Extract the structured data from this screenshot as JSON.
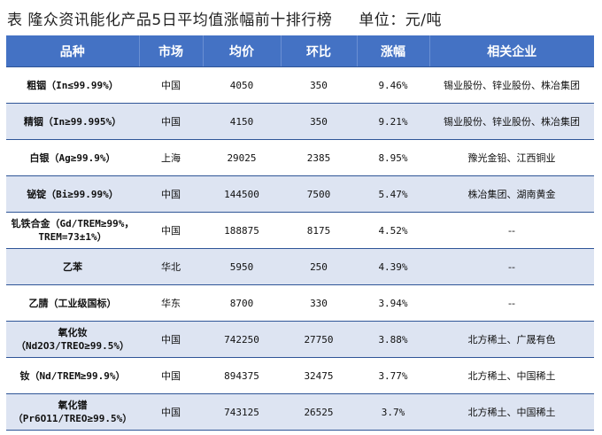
{
  "title": {
    "main": "表  隆众资讯能化产品5日平均值涨幅前十排行榜",
    "unit": "单位：元/吨"
  },
  "headers": [
    "品种",
    "市场",
    "均价",
    "环比",
    "涨幅",
    "相关企业"
  ],
  "rows": [
    {
      "name": "粗铟（In≤99.99%）",
      "market": "中国",
      "avg": "4050",
      "change": "350",
      "pct": "9.46%",
      "companies": "锡业股份、锌业股份、株冶集团"
    },
    {
      "name": "精铟（In≥99.995%）",
      "market": "中国",
      "avg": "4150",
      "change": "350",
      "pct": "9.21%",
      "companies": "锡业股份、锌业股份、株冶集团"
    },
    {
      "name": "白银（Ag≥99.9%）",
      "market": "上海",
      "avg": "29025",
      "change": "2385",
      "pct": "8.95%",
      "companies": "豫光金铅、江西铜业"
    },
    {
      "name": "铋锭（Bi≥99.99%）",
      "market": "中国",
      "avg": "144500",
      "change": "7500",
      "pct": "5.47%",
      "companies": "株冶集团、湖南黄金"
    },
    {
      "name": "钆铁合金（Gd/TREM≥99%，TREM=73±1%）",
      "market": "中国",
      "avg": "188875",
      "change": "8175",
      "pct": "4.52%",
      "companies": "--"
    },
    {
      "name": "乙苯",
      "market": "华北",
      "avg": "5950",
      "change": "250",
      "pct": "4.39%",
      "companies": "--"
    },
    {
      "name": "乙腈（工业级国标）",
      "market": "华东",
      "avg": "8700",
      "change": "330",
      "pct": "3.94%",
      "companies": "--"
    },
    {
      "name": "氧化钕（Nd2O3/TREO≥99.5%）",
      "market": "中国",
      "avg": "742250",
      "change": "27750",
      "pct": "3.88%",
      "companies": "北方稀土、广晟有色"
    },
    {
      "name": "钕（Nd/TREM≥99.9%）",
      "market": "中国",
      "avg": "894375",
      "change": "32475",
      "pct": "3.77%",
      "companies": "北方稀土、中国稀土"
    },
    {
      "name": "氧化镨（Pr6O11/TREO≥99.5%）",
      "market": "中国",
      "avg": "743125",
      "change": "26525",
      "pct": "3.7%",
      "companies": "北方稀土、中国稀土"
    }
  ],
  "colors": {
    "header_bg": "#4472c4",
    "alt_row": "#dde4f2",
    "accent_red": "#e3201b"
  }
}
